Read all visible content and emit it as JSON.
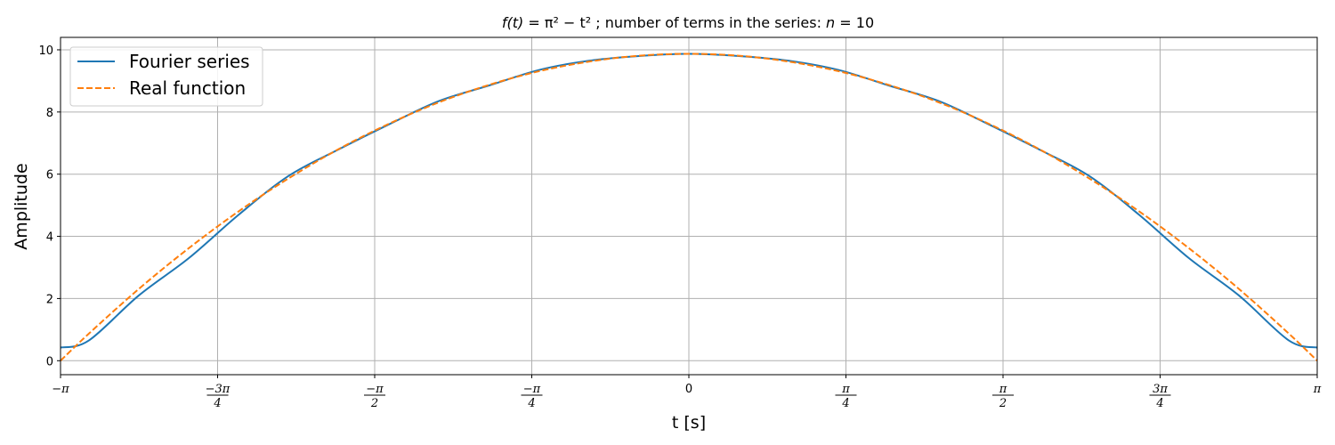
{
  "chart_data": {
    "type": "line",
    "title": {
      "lhs": "f(t)",
      "rhs": "= π² − t²",
      "text": "; number of terms in the series: ",
      "n_label": "n",
      "n_value": "= 10"
    },
    "xlabel": "t [s]",
    "ylabel": "Amplitude",
    "xlim": [
      -3.14159,
      3.14159
    ],
    "ylim": [
      -0.45,
      10.4
    ],
    "grid": true,
    "legend_position": "upper-left",
    "n_terms": 10,
    "x_ticks": [
      {
        "value": -3.14159,
        "num": "−π",
        "den": ""
      },
      {
        "value": -2.35619,
        "num": "−3π",
        "den": "4"
      },
      {
        "value": -1.5708,
        "num": "−π",
        "den": "2"
      },
      {
        "value": -0.7854,
        "num": "−π",
        "den": "4"
      },
      {
        "value": 0,
        "num": "0",
        "den": ""
      },
      {
        "value": 0.7854,
        "num": "π",
        "den": "4"
      },
      {
        "value": 1.5708,
        "num": "π",
        "den": "2"
      },
      {
        "value": 2.35619,
        "num": "3π",
        "den": "4"
      },
      {
        "value": 3.14159,
        "num": "π",
        "den": ""
      }
    ],
    "y_ticks": [
      {
        "value": 0,
        "label": "0"
      },
      {
        "value": 2,
        "label": "2"
      },
      {
        "value": 4,
        "label": "4"
      },
      {
        "value": 6,
        "label": "6"
      },
      {
        "value": 8,
        "label": "8"
      },
      {
        "value": 10,
        "label": "10"
      }
    ],
    "series": [
      {
        "name": "Fourier series",
        "color": "#1f77b4",
        "dash": "solid",
        "x": [
          -3.1416,
          -3.0,
          -2.75,
          -2.5,
          -2.25,
          -2.0,
          -1.75,
          -1.5,
          -1.25,
          -1.0,
          -0.75,
          -0.5,
          -0.25,
          0.0,
          0.25,
          0.5,
          0.75,
          1.0,
          1.25,
          1.5,
          1.75,
          2.0,
          2.25,
          2.5,
          2.75,
          3.0,
          3.1416
        ],
        "y": [
          0.42,
          0.65,
          2.1,
          3.3,
          4.7,
          5.95,
          6.8,
          7.6,
          8.35,
          8.85,
          9.35,
          9.65,
          9.8,
          9.87,
          9.8,
          9.65,
          9.35,
          8.85,
          8.35,
          7.6,
          6.8,
          5.95,
          4.7,
          3.3,
          2.1,
          0.65,
          0.42
        ]
      },
      {
        "name": "Real function",
        "color": "#ff7f0e",
        "dash": "dashed",
        "x": [
          -3.1416,
          -3.0,
          -2.75,
          -2.5,
          -2.25,
          -2.0,
          -1.75,
          -1.5,
          -1.25,
          -1.0,
          -0.75,
          -0.5,
          -0.25,
          0.0,
          0.25,
          0.5,
          0.75,
          1.0,
          1.25,
          1.5,
          1.75,
          2.0,
          2.25,
          2.5,
          2.75,
          3.0,
          3.1416
        ],
        "y": [
          0.0,
          0.87,
          2.31,
          3.62,
          4.81,
          5.87,
          6.81,
          7.62,
          8.31,
          8.87,
          9.31,
          9.62,
          9.81,
          9.87,
          9.81,
          9.62,
          9.31,
          8.87,
          8.31,
          7.62,
          6.81,
          5.87,
          4.81,
          3.62,
          2.31,
          0.87,
          0.0
        ]
      }
    ]
  }
}
